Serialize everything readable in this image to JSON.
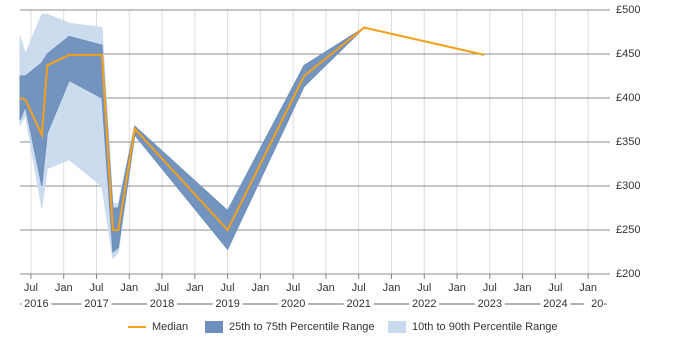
{
  "chart_data": {
    "type": "line",
    "x": [
      "2016-05",
      "2016-06",
      "2016-09",
      "2016-10",
      "2017-02",
      "2017-08",
      "2017-10",
      "2017-11",
      "2018-02",
      "2019-07",
      "2020-09",
      "2021-08",
      "2023-06"
    ],
    "series": [
      {
        "name": "Median",
        "color": "#f5a01a",
        "values": [
          400,
          398,
          358,
          437,
          449,
          449,
          250,
          250,
          365,
          250,
          425,
          480,
          449
        ]
      },
      {
        "name": "25th to 75th Percentile Range",
        "color": "#6d8fbb",
        "high": [
          425,
          425,
          440,
          450,
          470,
          460,
          275,
          275,
          368,
          272,
          437,
          480,
          null
        ],
        "low": [
          375,
          390,
          300,
          360,
          420,
          400,
          225,
          230,
          358,
          228,
          413,
          480,
          null
        ]
      },
      {
        "name": "10th to 90th Percentile Range",
        "color": "#c9daee",
        "high": [
          470,
          450,
          495,
          495,
          485,
          480,
          280,
          280,
          368,
          272,
          437,
          480,
          null
        ],
        "low": [
          370,
          380,
          275,
          320,
          330,
          300,
          218,
          225,
          358,
          228,
          413,
          480,
          null
        ]
      }
    ],
    "xlim": [
      "2016-05",
      "2025-05"
    ],
    "xticks": [
      {
        "value": "2016-07",
        "label": "Jul"
      },
      {
        "value": "2017-01",
        "label": "Jan"
      },
      {
        "value": "2017-07",
        "label": "Jul"
      },
      {
        "value": "2018-01",
        "label": "Jan"
      },
      {
        "value": "2018-07",
        "label": "Jul"
      },
      {
        "value": "2019-01",
        "label": "Jan"
      },
      {
        "value": "2019-07",
        "label": "Jul"
      },
      {
        "value": "2020-01",
        "label": "Jan"
      },
      {
        "value": "2020-07",
        "label": "Jul"
      },
      {
        "value": "2021-01",
        "label": "Jan"
      },
      {
        "value": "2021-07",
        "label": "Jul"
      },
      {
        "value": "2022-01",
        "label": "Jan"
      },
      {
        "value": "2022-07",
        "label": "Jul"
      },
      {
        "value": "2023-01",
        "label": "Jan"
      },
      {
        "value": "2023-07",
        "label": "Jul"
      },
      {
        "value": "2024-01",
        "label": "Jan"
      },
      {
        "value": "2024-07",
        "label": "Jul"
      },
      {
        "value": "2025-01",
        "label": "Jan"
      }
    ],
    "year_labels": [
      {
        "value": "2016-08",
        "label": "2016"
      },
      {
        "value": "2017-07",
        "label": "2017"
      },
      {
        "value": "2018-07",
        "label": "2018"
      },
      {
        "value": "2019-07",
        "label": "2019"
      },
      {
        "value": "2020-07",
        "label": "2020"
      },
      {
        "value": "2021-07",
        "label": "2021"
      },
      {
        "value": "2022-07",
        "label": "2022"
      },
      {
        "value": "2023-07",
        "label": "2023"
      },
      {
        "value": "2024-07",
        "label": "2024"
      },
      {
        "value": "2025-03",
        "label": "20-"
      }
    ],
    "ylim": [
      200,
      500
    ],
    "yticks": [
      {
        "value": 200,
        "label": "£200"
      },
      {
        "value": 250,
        "label": "£250"
      },
      {
        "value": 300,
        "label": "£300"
      },
      {
        "value": 350,
        "label": "£350"
      },
      {
        "value": 400,
        "label": "£400"
      },
      {
        "value": 450,
        "label": "£450"
      },
      {
        "value": 500,
        "label": "£500"
      }
    ],
    "grid": true,
    "legend": "bottom"
  }
}
